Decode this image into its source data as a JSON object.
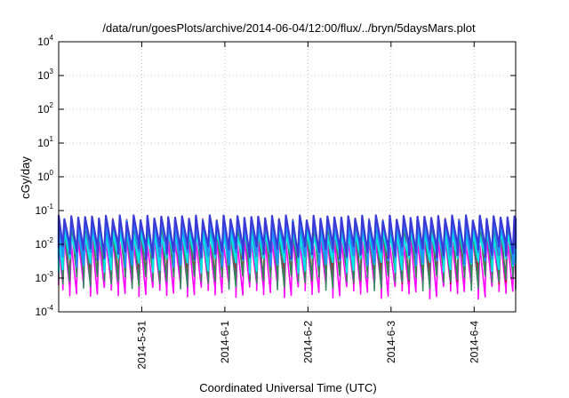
{
  "chart_data": {
    "type": "line",
    "title": "/data/run/goesPlots/archive/2014-06-04/12:00/flux/../bryn/5daysMars.plot",
    "xlabel": "Coordinated Universal Time (UTC)",
    "ylabel": "cGy/day",
    "yscale": "log",
    "ylim": [
      0.0001,
      10000
    ],
    "xlim": [
      "2014-05-30T00:00",
      "2014-06-04T12:00"
    ],
    "grid": true,
    "y_ticks": [
      {
        "value": 0.0001,
        "base": "10",
        "exp": "-4"
      },
      {
        "value": 0.001,
        "base": "10",
        "exp": "-3"
      },
      {
        "value": 0.01,
        "base": "10",
        "exp": "-2"
      },
      {
        "value": 0.1,
        "base": "10",
        "exp": "-1"
      },
      {
        "value": 1,
        "base": "10",
        "exp": "0"
      },
      {
        "value": 10,
        "base": "10",
        "exp": "1"
      },
      {
        "value": 100,
        "base": "10",
        "exp": "2"
      },
      {
        "value": 1000,
        "base": "10",
        "exp": "3"
      },
      {
        "value": 10000,
        "base": "10",
        "exp": "4"
      }
    ],
    "x_ticks": [
      {
        "value": "2014-05-31T00:00",
        "label": "2014-5-31"
      },
      {
        "value": "2014-06-01T00:00",
        "label": "2014-6-1"
      },
      {
        "value": "2014-06-02T00:00",
        "label": "2014-6-2"
      },
      {
        "value": "2014-06-03T00:00",
        "label": "2014-6-3"
      },
      {
        "value": "2014-06-04T00:00",
        "label": "2014-6-4"
      }
    ],
    "cycles_per_day": 12,
    "series": [
      {
        "color": "#ff00ff",
        "peak": 0.012,
        "trough": 0.0006
      },
      {
        "color": "#cc0033",
        "peak": 0.05,
        "trough": 0.0018
      },
      {
        "color": "#2e8b57",
        "peak": 0.03,
        "trough": 0.0012
      },
      {
        "color": "#00e5e5",
        "peak": 0.022,
        "trough": 0.004
      },
      {
        "color": "#1e90ff",
        "peak": 0.045,
        "trough": 0.006
      },
      {
        "color": "#3a3ad6",
        "peak": 0.06,
        "trough": 0.009
      }
    ]
  }
}
